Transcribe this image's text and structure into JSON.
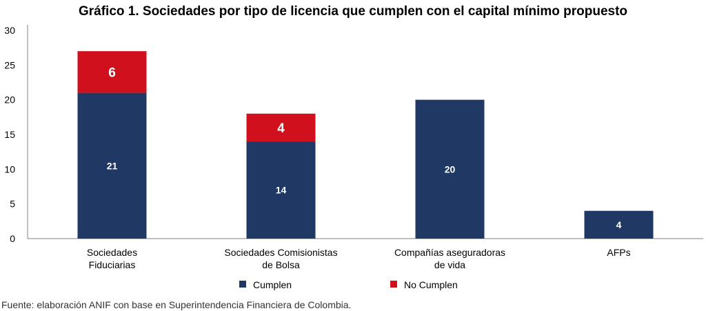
{
  "chart_data": {
    "type": "bar",
    "stacked": true,
    "title": "Gráfico 1. Sociedades por tipo de licencia que cumplen con el capital mínimo propuesto",
    "categories": [
      [
        "Sociedades",
        "Fiduciarias"
      ],
      [
        "Sociedades Comisionistas",
        "de Bolsa"
      ],
      [
        "Compañías aseguradoras",
        "de vida"
      ],
      [
        "AFPs"
      ]
    ],
    "series": [
      {
        "name": "Cumplen",
        "color": "#1f3864",
        "values": [
          21,
          14,
          20,
          4
        ]
      },
      {
        "name": "No Cumplen",
        "color": "#d0101c",
        "values": [
          6,
          4,
          null,
          null
        ]
      }
    ],
    "ylim": [
      0,
      30
    ],
    "yticks": [
      0,
      5,
      10,
      15,
      20,
      25,
      30
    ],
    "xlabel": "",
    "ylabel": "",
    "grid": false,
    "legend_position": "bottom"
  },
  "source": "Fuente: elaboración ANIF con base en Superintendencia Financiera de Colombia."
}
